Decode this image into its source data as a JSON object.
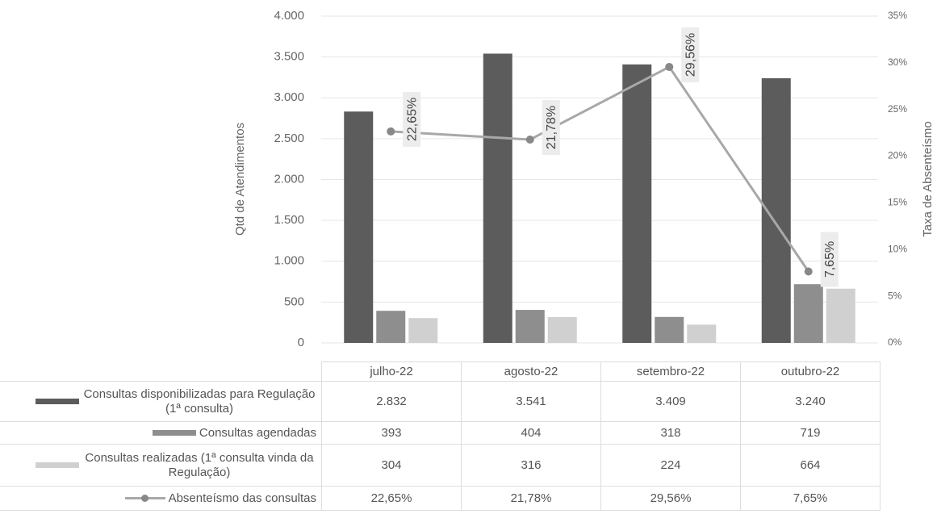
{
  "chart_data": {
    "type": "bar",
    "y_axis_label": "Qtd de Atendimentos",
    "y2_axis_label": "Taxa de Absenteísmo",
    "categories": [
      "julho-22",
      "agosto-22",
      "setembro-22",
      "outubro-22"
    ],
    "series": [
      {
        "name": "Consultas disponibilizadas para Regulação (1ª consulta)",
        "type": "bar",
        "color": "#5c5c5c",
        "values": [
          2832,
          3541,
          3409,
          3240
        ],
        "value_labels": [
          "2.832",
          "3.541",
          "3.409",
          "3.240"
        ]
      },
      {
        "name": "Consultas agendadas",
        "type": "bar",
        "color": "#8e8e8e",
        "values": [
          393,
          404,
          318,
          719
        ]
      },
      {
        "name": "Consultas realizadas (1ª consulta vinda da Regulação)",
        "type": "bar",
        "color": "#d0d0d0",
        "values": [
          304,
          316,
          224,
          664
        ]
      },
      {
        "name": "Absenteísmo das consultas",
        "type": "line",
        "axis": "y2",
        "color": "#a8a8a8",
        "values": [
          22.65,
          21.78,
          29.56,
          7.65
        ],
        "value_labels": [
          "22,65%",
          "21,78%",
          "29,56%",
          "7,65%"
        ]
      }
    ],
    "ylim": [
      0,
      4000
    ],
    "yticks": [
      0,
      {
        "value": 500,
        "label": "500"
      },
      {
        "value": 1000,
        "label": "1.000"
      },
      {
        "value": 1500,
        "label": "1.500"
      },
      {
        "value": 2000,
        "label": "2.000"
      },
      {
        "value": 2500,
        "label": "2.500"
      },
      {
        "value": 3000,
        "label": "3.000"
      },
      {
        "value": 3500,
        "label": "3.500"
      },
      {
        "value": 4000,
        "label": "4.000"
      }
    ],
    "y2lim": [
      0,
      35
    ],
    "y2ticks": [
      {
        "value": 0,
        "label": "0%"
      },
      {
        "value": 5,
        "label": "5%"
      },
      {
        "value": 10,
        "label": "10%"
      },
      {
        "value": 15,
        "label": "15%"
      },
      {
        "value": 20,
        "label": "20%"
      },
      {
        "value": 25,
        "label": "25%"
      },
      {
        "value": 30,
        "label": "30%"
      },
      {
        "value": 35,
        "label": "35%"
      }
    ],
    "grid": true
  }
}
